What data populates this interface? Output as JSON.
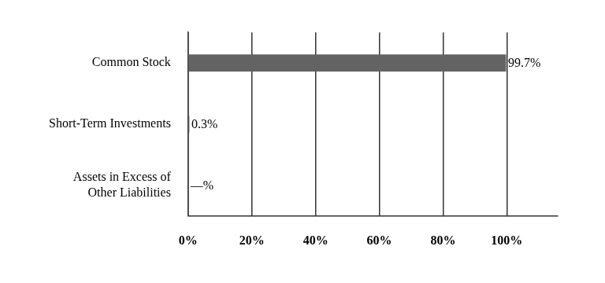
{
  "chart_data": {
    "type": "bar",
    "orientation": "horizontal",
    "categories": [
      "Common Stock",
      "Short-Term Investments",
      "Assets in Excess of Other Liabilities"
    ],
    "values": [
      99.7,
      0.3,
      0
    ],
    "value_labels": [
      "99.7%",
      "0.3%",
      "—%"
    ],
    "data_labels": true,
    "color": "#636363",
    "xlim": [
      0,
      116
    ],
    "xticks": [
      {
        "value": 0,
        "label": "0%"
      },
      {
        "value": 20,
        "label": "20%"
      },
      {
        "value": 40,
        "label": "40%"
      },
      {
        "value": 60,
        "label": "60%"
      },
      {
        "value": 80,
        "label": "80%"
      },
      {
        "value": 100,
        "label": "100%"
      }
    ],
    "grid": true
  }
}
